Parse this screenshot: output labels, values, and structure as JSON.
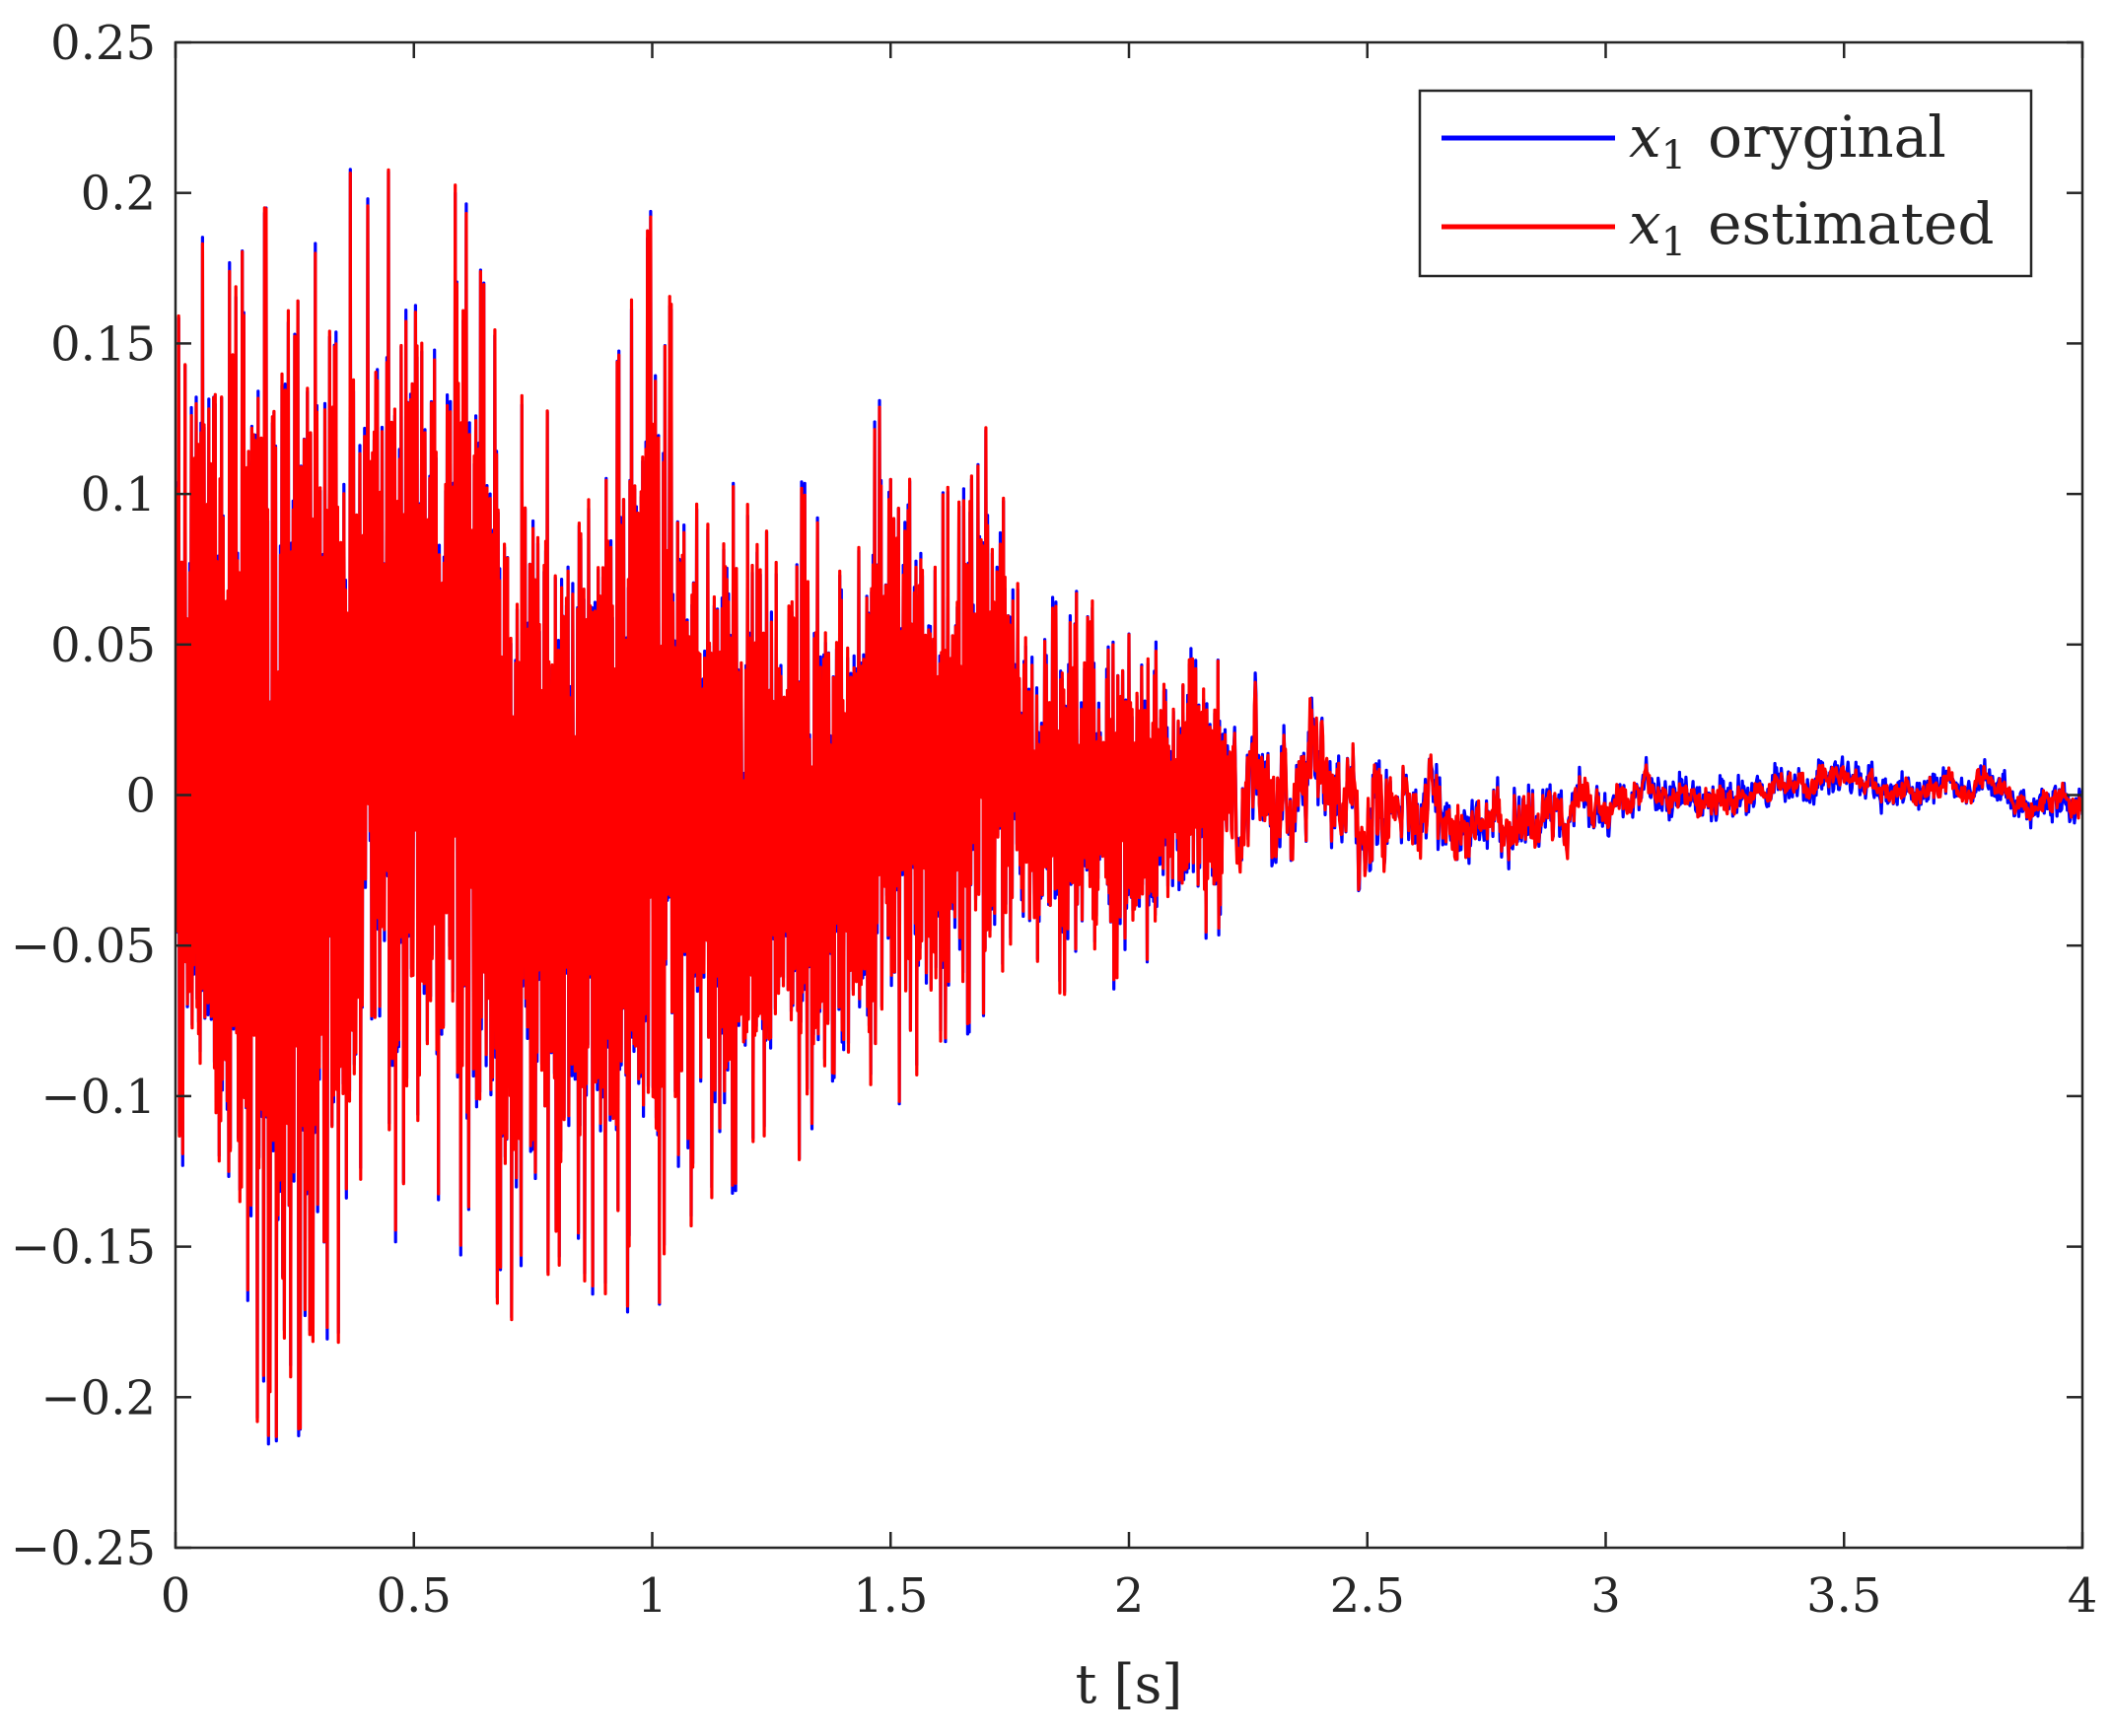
{
  "chart_data": {
    "type": "line",
    "title": "",
    "xlabel": "t [s]",
    "ylabel": "",
    "xlim": [
      0,
      4
    ],
    "ylim": [
      -0.25,
      0.25
    ],
    "x_ticks": [
      0,
      0.5,
      1,
      1.5,
      2,
      2.5,
      3,
      3.5,
      4
    ],
    "y_ticks": [
      -0.25,
      -0.2,
      -0.15,
      -0.1,
      -0.05,
      0,
      0.05,
      0.1,
      0.15,
      0.2,
      0.25
    ],
    "x_tick_labels": [
      "0",
      "0.5",
      "1",
      "1.5",
      "2",
      "2.5",
      "3",
      "3.5",
      "4"
    ],
    "y_tick_labels": [
      "−0.25",
      "−0.2",
      "−0.15",
      "−0.1",
      "−0.05",
      "0",
      "0.05",
      "0.1",
      "0.15",
      "0.2",
      "0.25"
    ],
    "grid": false,
    "legend_position": "top-right",
    "envelope": {
      "x": [
        0,
        0.1,
        0.2,
        0.3,
        0.4,
        0.5,
        0.6,
        0.7,
        0.8,
        0.9,
        1.0,
        1.1,
        1.2,
        1.3,
        1.4,
        1.5,
        1.6,
        1.7,
        1.8,
        1.9,
        2.0,
        2.1,
        2.2,
        2.3,
        2.4,
        2.5,
        2.6,
        2.7,
        2.8,
        2.9,
        3.0,
        3.2,
        3.4,
        3.6,
        3.8,
        4.0
      ],
      "upper": [
        0.16,
        0.21,
        0.2,
        0.237,
        0.2,
        0.228,
        0.205,
        0.14,
        0.13,
        0.13,
        0.2,
        0.12,
        0.1,
        0.11,
        0.075,
        0.15,
        0.1,
        0.125,
        0.06,
        0.07,
        0.055,
        0.045,
        0.05,
        0.04,
        0.035,
        0.028,
        0.025,
        0.02,
        0.015,
        0.01,
        0.01,
        0.01,
        0.01,
        0.01,
        0.01,
        0.005
      ],
      "lower": [
        -0.11,
        -0.2,
        -0.22,
        -0.215,
        -0.15,
        -0.15,
        -0.155,
        -0.18,
        -0.16,
        -0.17,
        -0.18,
        -0.14,
        -0.13,
        -0.125,
        -0.12,
        -0.11,
        -0.085,
        -0.075,
        -0.065,
        -0.07,
        -0.06,
        -0.05,
        -0.045,
        -0.045,
        -0.04,
        -0.045,
        -0.025,
        -0.025,
        -0.025,
        -0.025,
        -0.012,
        -0.01,
        -0.005,
        -0.005,
        -0.005,
        -0.012
      ]
    },
    "series": [
      {
        "name": "x_1 oryginal",
        "color": "#0000ff"
      },
      {
        "name": "x_1 estimated",
        "color": "#ff0000"
      }
    ]
  },
  "legend": {
    "entries": [
      {
        "symbol": "x",
        "subscript": "1",
        "text": "oryginal",
        "color": "#0000ff"
      },
      {
        "symbol": "x",
        "subscript": "1",
        "text": "estimated",
        "color": "#ff0000"
      }
    ]
  }
}
